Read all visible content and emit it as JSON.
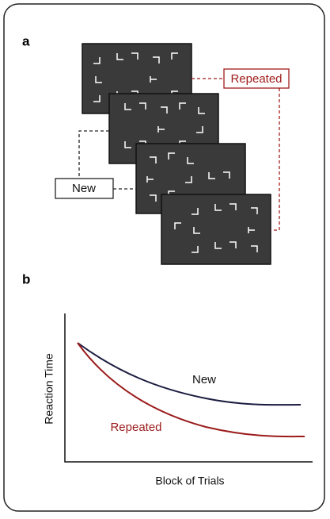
{
  "panel_a": {
    "label": "a",
    "repeated_label": "Repeated",
    "new_label": "New"
  },
  "panel_b": {
    "label": "b",
    "y_axis_label": "Reaction Time",
    "x_axis_label": "Block of Trials",
    "new_curve_label": "New",
    "repeated_curve_label": "Repeated"
  }
}
